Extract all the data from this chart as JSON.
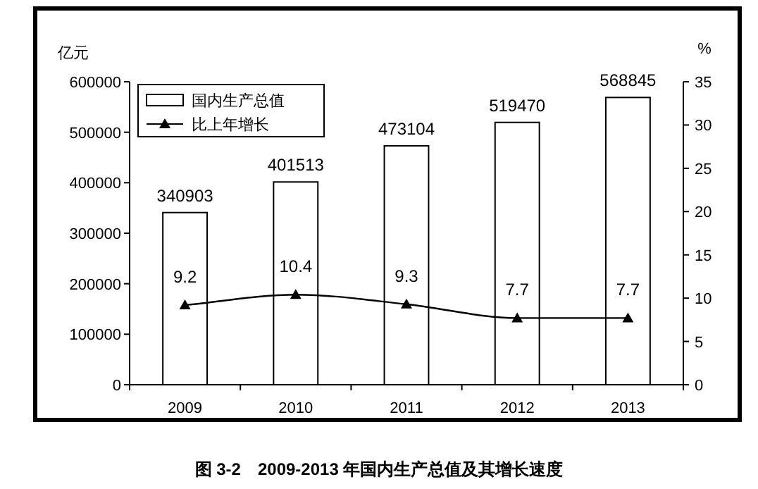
{
  "chart_data": {
    "type": "bar",
    "title": "图 3-2　2009-2013 年国内生产总值及其增长速度",
    "ylabel": "亿元",
    "y2label": "%",
    "categories": [
      "2009",
      "2010",
      "2011",
      "2012",
      "2013"
    ],
    "series": [
      {
        "name": "国内生产总值",
        "color": "#ffffff",
        "values": [
          340903,
          401513,
          473104,
          519470,
          568845
        ],
        "data_labels": true
      },
      {
        "name": "比上年增长",
        "type": "line",
        "axis": "y2",
        "color": "#000000",
        "marker": "triangle",
        "line_style": "solid",
        "values": [
          9.2,
          10.4,
          9.3,
          7.7,
          7.7
        ],
        "data_labels": true
      }
    ],
    "ylim": [
      0,
      600000
    ],
    "yticks": [
      0,
      100000,
      200000,
      300000,
      400000,
      500000,
      600000
    ],
    "y2lim": [
      0,
      35
    ],
    "y2ticks": [
      0,
      5,
      10,
      15,
      20,
      25,
      30,
      35
    ],
    "grid": false,
    "legend": "top left"
  }
}
